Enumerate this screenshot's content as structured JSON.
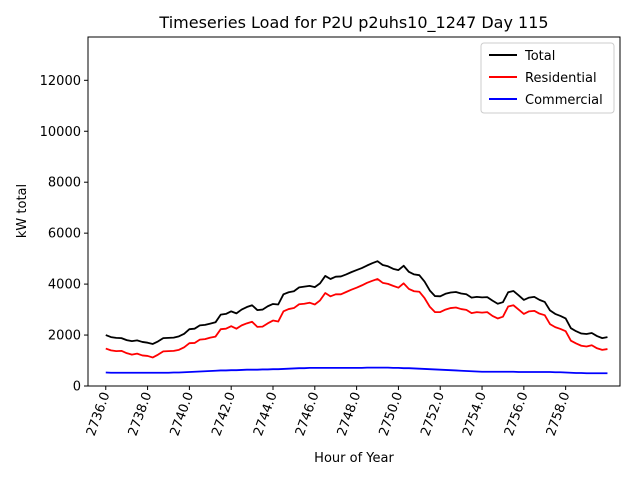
{
  "chart_data": {
    "type": "line",
    "title": "Timeseries Load for P2U p2uhs10_1247  Day 115",
    "xlabel": "Hour of Year",
    "ylabel": "kW total",
    "xlim": [
      2735.15,
      2760.6
    ],
    "ylim": [
      0,
      13700
    ],
    "xticks": [
      2736,
      2738,
      2740,
      2742,
      2744,
      2746,
      2748,
      2750,
      2752,
      2754,
      2756,
      2758
    ],
    "xtick_labels": [
      "2736.0",
      "2738.0",
      "2740.0",
      "2742.0",
      "2744.0",
      "2746.0",
      "2748.0",
      "2750.0",
      "2752.0",
      "2754.0",
      "2756.0",
      "2758.0"
    ],
    "yticks": [
      0,
      2000,
      4000,
      6000,
      8000,
      10000,
      12000
    ],
    "ytick_labels": [
      "0",
      "2000",
      "4000",
      "6000",
      "8000",
      "10000",
      "12000"
    ],
    "legend_position": "top-right",
    "grid": false,
    "x_start": 2736.0,
    "x_step": 0.25,
    "series": [
      {
        "name": "Total",
        "color": "#000000",
        "values": [
          2000,
          1920,
          1890,
          1880,
          1800,
          1760,
          1790,
          1730,
          1700,
          1650,
          1750,
          1880,
          1890,
          1900,
          1950,
          2050,
          2230,
          2250,
          2380,
          2400,
          2450,
          2500,
          2800,
          2830,
          2930,
          2850,
          3000,
          3100,
          3170,
          2980,
          3000,
          3130,
          3220,
          3200,
          3600,
          3680,
          3720,
          3870,
          3900,
          3930,
          3880,
          4030,
          4320,
          4200,
          4290,
          4300,
          4380,
          4470,
          4550,
          4630,
          4730,
          4820,
          4900,
          4750,
          4700,
          4600,
          4550,
          4720,
          4480,
          4380,
          4350,
          4100,
          3750,
          3530,
          3520,
          3620,
          3670,
          3690,
          3630,
          3600,
          3470,
          3500,
          3480,
          3490,
          3350,
          3230,
          3290,
          3680,
          3730,
          3560,
          3380,
          3470,
          3500,
          3380,
          3300,
          2970,
          2830,
          2750,
          2650,
          2270,
          2150,
          2060,
          2040,
          2080,
          1960,
          1880,
          1920
        ]
      },
      {
        "name": "Residential",
        "color": "#ff0000",
        "values": [
          1470,
          1400,
          1370,
          1380,
          1290,
          1230,
          1270,
          1200,
          1180,
          1120,
          1230,
          1360,
          1370,
          1380,
          1420,
          1520,
          1680,
          1690,
          1820,
          1840,
          1900,
          1940,
          2230,
          2250,
          2350,
          2250,
          2380,
          2460,
          2520,
          2320,
          2330,
          2460,
          2570,
          2530,
          2930,
          3020,
          3060,
          3210,
          3230,
          3270,
          3200,
          3360,
          3650,
          3520,
          3600,
          3600,
          3690,
          3780,
          3860,
          3950,
          4050,
          4130,
          4200,
          4050,
          4010,
          3930,
          3860,
          4030,
          3810,
          3720,
          3700,
          3450,
          3110,
          2900,
          2900,
          3000,
          3060,
          3080,
          3020,
          2990,
          2860,
          2900,
          2880,
          2900,
          2750,
          2650,
          2720,
          3120,
          3170,
          3000,
          2830,
          2930,
          2950,
          2840,
          2780,
          2430,
          2310,
          2240,
          2150,
          1780,
          1670,
          1580,
          1550,
          1600,
          1480,
          1420,
          1450
        ]
      },
      {
        "name": "Commercial",
        "color": "#0000ff",
        "values": [
          530,
          520,
          520,
          520,
          520,
          520,
          520,
          520,
          520,
          520,
          520,
          520,
          520,
          530,
          530,
          540,
          550,
          560,
          570,
          580,
          590,
          600,
          610,
          610,
          620,
          620,
          630,
          640,
          640,
          640,
          650,
          650,
          660,
          660,
          670,
          680,
          690,
          700,
          700,
          710,
          710,
          710,
          710,
          710,
          710,
          710,
          710,
          710,
          710,
          710,
          720,
          720,
          720,
          720,
          720,
          710,
          710,
          700,
          700,
          690,
          680,
          670,
          660,
          650,
          640,
          630,
          620,
          610,
          600,
          590,
          580,
          570,
          560,
          560,
          560,
          560,
          560,
          560,
          560,
          550,
          550,
          550,
          550,
          550,
          550,
          550,
          540,
          540,
          530,
          520,
          510,
          510,
          500,
          500,
          500,
          500,
          500
        ]
      }
    ]
  }
}
